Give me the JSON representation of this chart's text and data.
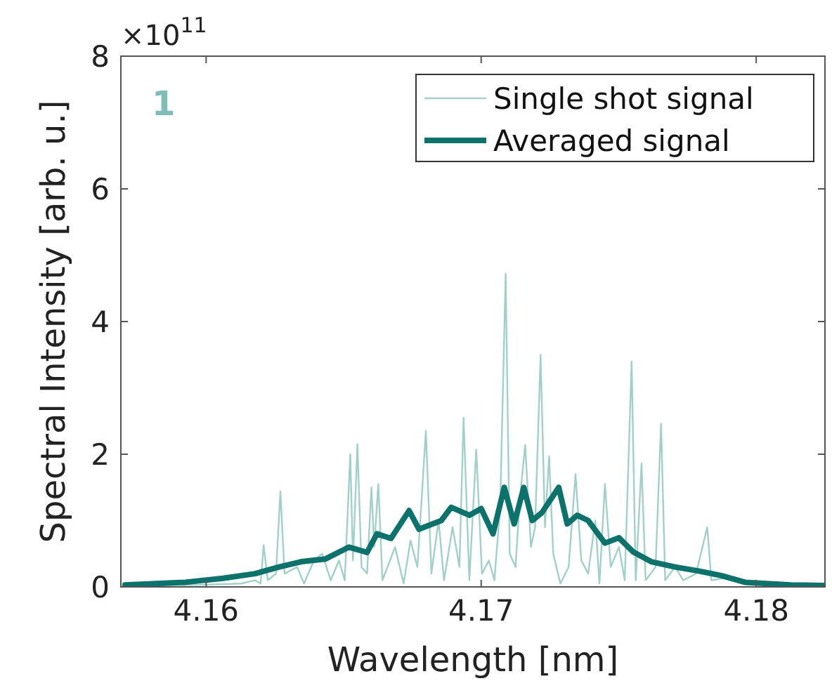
{
  "chart_data": {
    "type": "line",
    "xlabel": "Wavelength [nm]",
    "ylabel": "Spectral Intensity [arb. u.]",
    "annotations": [
      "1",
      "×10$^{11}$"
    ],
    "xlim": [
      4.1569,
      4.1825
    ],
    "xticks": [
      4.16,
      4.17,
      4.18
    ],
    "ylim": [
      0,
      8
    ],
    "yticks": [
      0,
      2,
      4,
      6,
      8
    ],
    "grid": false,
    "legend": "top right",
    "series": [
      {
        "name": "Single shot signal",
        "color": "#a3cfcb",
        "x": [
          4.15705,
          4.15975,
          4.16127,
          4.16178,
          4.16198,
          4.16209,
          4.16224,
          4.16254,
          4.1627,
          4.16285,
          4.16331,
          4.16356,
          4.16392,
          4.16422,
          4.16453,
          4.16483,
          4.16504,
          4.16524,
          4.16534,
          4.1655,
          4.16565,
          4.16585,
          4.16601,
          4.16611,
          4.16626,
          4.16641,
          4.16687,
          4.16718,
          4.16743,
          4.16768,
          4.16799,
          4.16819,
          4.16845,
          4.16865,
          4.16896,
          4.16921,
          4.16936,
          4.16957,
          4.16982,
          4.17003,
          4.17028,
          4.17048,
          4.17069,
          4.17089,
          4.17104,
          4.17125,
          4.1714,
          4.1716,
          4.17181,
          4.17196,
          4.17216,
          4.17232,
          4.17247,
          4.17262,
          4.17288,
          4.17318,
          4.17343,
          4.17364,
          4.17389,
          4.17415,
          4.1743,
          4.1745,
          4.17471,
          4.17501,
          4.17522,
          4.17547,
          4.17562,
          4.17583,
          4.17598,
          4.17634,
          4.17654,
          4.17669,
          4.17705,
          4.17735,
          4.17781,
          4.17822,
          4.17837,
          4.17908,
          4.1801
        ],
        "values": [
          0.02,
          0.03,
          0.05,
          0.1,
          0.05,
          0.63,
          0.1,
          0.2,
          1.44,
          0.2,
          0.3,
          0.05,
          0.4,
          0.5,
          0.1,
          0.4,
          0.1,
          2.0,
          0.4,
          2.15,
          0.3,
          0.2,
          1.5,
          0.6,
          1.55,
          0.1,
          0.6,
          0.05,
          0.7,
          0.3,
          2.35,
          0.2,
          1.0,
          0.1,
          0.9,
          0.3,
          2.55,
          0.1,
          2.07,
          0.2,
          0.4,
          0.1,
          1.2,
          4.72,
          0.5,
          0.3,
          1.3,
          2.14,
          0.6,
          0.9,
          3.5,
          0.9,
          1.97,
          0.5,
          0.05,
          0.3,
          1.7,
          0.4,
          0.2,
          1.0,
          0.05,
          1.55,
          0.3,
          0.6,
          0.1,
          3.4,
          0.1,
          1.86,
          0.1,
          0.3,
          2.46,
          0.1,
          0.3,
          0.1,
          0.2,
          0.9,
          0.1,
          0.15,
          0.05
        ]
      },
      {
        "name": "Averaged signal",
        "color": "#0e726c",
        "x": [
          4.15705,
          4.15924,
          4.16061,
          4.16178,
          4.16265,
          4.16346,
          4.16433,
          4.16519,
          4.16585,
          4.16621,
          4.16672,
          4.16738,
          4.16774,
          4.16855,
          4.16891,
          4.16957,
          4.17,
          4.17043,
          4.17084,
          4.1712,
          4.17155,
          4.17186,
          4.17221,
          4.17282,
          4.17313,
          4.17349,
          4.17389,
          4.1745,
          4.17501,
          4.17552,
          4.17618,
          4.17705,
          4.17791,
          4.17873,
          4.17959,
          4.18127,
          4.18249
        ],
        "values": [
          0.03,
          0.07,
          0.13,
          0.2,
          0.3,
          0.38,
          0.42,
          0.6,
          0.52,
          0.8,
          0.73,
          1.15,
          0.87,
          1.0,
          1.2,
          1.08,
          1.18,
          0.8,
          1.5,
          0.95,
          1.5,
          1.0,
          1.12,
          1.5,
          0.95,
          1.08,
          1.0,
          0.66,
          0.74,
          0.53,
          0.38,
          0.3,
          0.24,
          0.17,
          0.07,
          0.03,
          0.02
        ]
      }
    ]
  }
}
